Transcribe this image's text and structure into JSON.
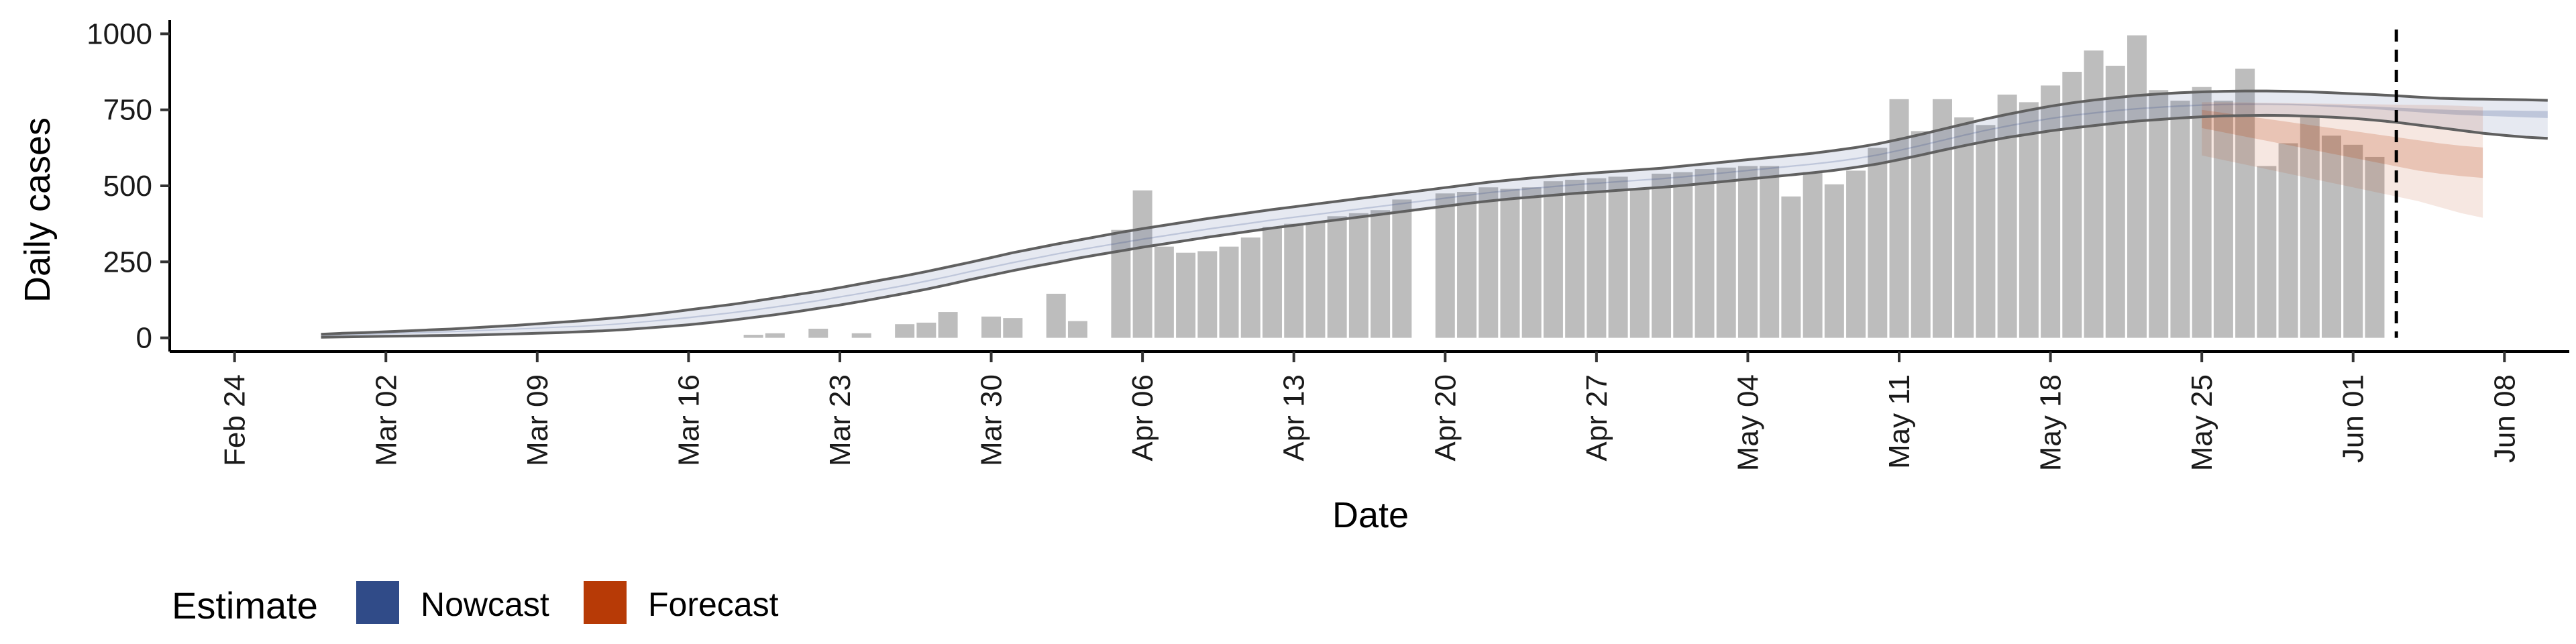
{
  "chart_data": {
    "type": "bar",
    "xlabel": "Date",
    "ylabel": "Daily cases",
    "xlim": [
      "2020-02-21",
      "2020-06-11"
    ],
    "ylim": [
      -45,
      1045
    ],
    "x_ticks": [
      "Feb 24",
      "Mar 02",
      "Mar 09",
      "Mar 16",
      "Mar 23",
      "Mar 30",
      "Apr 06",
      "Apr 13",
      "Apr 20",
      "Apr 27",
      "May 04",
      "May 11",
      "May 18",
      "May 25",
      "Jun 01",
      "Jun 08"
    ],
    "x_tick_dates": [
      "2020-02-24",
      "2020-03-02",
      "2020-03-09",
      "2020-03-16",
      "2020-03-23",
      "2020-03-30",
      "2020-04-06",
      "2020-04-13",
      "2020-04-20",
      "2020-04-27",
      "2020-05-04",
      "2020-05-11",
      "2020-05-18",
      "2020-05-25",
      "2020-06-01",
      "2020-06-08"
    ],
    "y_ticks": [
      0,
      250,
      500,
      750,
      1000
    ],
    "y_tick_labels": [
      "0",
      "250",
      "500",
      "750",
      "1000"
    ],
    "grid": false,
    "bar_start": "2020-02-28",
    "bars": [
      0,
      0,
      0,
      0,
      0,
      0,
      0,
      0,
      0,
      0,
      0,
      0,
      0,
      0,
      0,
      0,
      0,
      0,
      0,
      0,
      10,
      15,
      0,
      30,
      0,
      15,
      0,
      45,
      50,
      85,
      0,
      70,
      65,
      0,
      145,
      55,
      0,
      355,
      485,
      300,
      280,
      285,
      300,
      330,
      365,
      375,
      380,
      400,
      410,
      420,
      455,
      0,
      475,
      480,
      495,
      490,
      495,
      515,
      520,
      525,
      530,
      490,
      540,
      545,
      555,
      560,
      565,
      565,
      465,
      545,
      505,
      550,
      625,
      785,
      680,
      785,
      725,
      700,
      800,
      775,
      830,
      875,
      945,
      895,
      995,
      815,
      780,
      825,
      780,
      885,
      565,
      640,
      725,
      665,
      635,
      595
    ],
    "last_bar_date": "2020-06-02",
    "nowcast_date": "2020-05-24",
    "forecast_start": "2020-05-25",
    "forecast_end": "2020-06-07",
    "vline_date": "2020-06-03",
    "nowcast_median": [
      8,
      10,
      12,
      14,
      16,
      18,
      20,
      23,
      26,
      29,
      32,
      35,
      38,
      42,
      47,
      53,
      60,
      67,
      75,
      83,
      92,
      102,
      112,
      123,
      135,
      147,
      160,
      173,
      187,
      202,
      218,
      233,
      248,
      262,
      276,
      289,
      301,
      313,
      325,
      336,
      347,
      358,
      368,
      378,
      388,
      397,
      406,
      415,
      424,
      433,
      442,
      451,
      460,
      469,
      478,
      485,
      492,
      498,
      504,
      509,
      514,
      519,
      524,
      530,
      537,
      544,
      551,
      558,
      565,
      572,
      580,
      590,
      602,
      617,
      633,
      650,
      667,
      683,
      697,
      710,
      722,
      732,
      740,
      748,
      754,
      759,
      763,
      766,
      768,
      769,
      769,
      768,
      766,
      763,
      760,
      757,
      752,
      748,
      744,
      742,
      740,
      739,
      737,
      736
    ],
    "nowcast_lower90": [
      2,
      3,
      4,
      5,
      6,
      7,
      8,
      9,
      11,
      13,
      15,
      17,
      20,
      23,
      27,
      32,
      37,
      43,
      50,
      58,
      67,
      76,
      86,
      97,
      108,
      120,
      133,
      146,
      160,
      175,
      191,
      206,
      221,
      235,
      248,
      262,
      274,
      286,
      298,
      309,
      320,
      331,
      341,
      351,
      361,
      370,
      379,
      388,
      397,
      406,
      415,
      424,
      433,
      442,
      450,
      457,
      463,
      469,
      475,
      480,
      485,
      490,
      495,
      501,
      508,
      515,
      522,
      529,
      536,
      543,
      551,
      561,
      572,
      586,
      601,
      617,
      632,
      646,
      659,
      670,
      681,
      690,
      698,
      706,
      713,
      718,
      723,
      727,
      730,
      731,
      732,
      731,
      729,
      726,
      722,
      716,
      709,
      700,
      691,
      682,
      673,
      666,
      660,
      656
    ],
    "nowcast_upper90": [
      12,
      15,
      17,
      20,
      23,
      26,
      29,
      33,
      37,
      41,
      46,
      51,
      56,
      62,
      68,
      75,
      83,
      92,
      101,
      110,
      120,
      131,
      142,
      153,
      165,
      178,
      191,
      204,
      218,
      233,
      248,
      264,
      280,
      294,
      308,
      321,
      334,
      347,
      359,
      370,
      381,
      392,
      402,
      412,
      422,
      431,
      440,
      449,
      458,
      467,
      476,
      485,
      494,
      503,
      512,
      519,
      526,
      532,
      538,
      543,
      548,
      553,
      558,
      565,
      572,
      579,
      586,
      593,
      600,
      607,
      616,
      626,
      638,
      653,
      669,
      686,
      703,
      720,
      735,
      749,
      762,
      773,
      782,
      790,
      797,
      802,
      806,
      809,
      811,
      812,
      812,
      811,
      809,
      806,
      803,
      800,
      796,
      792,
      788,
      786,
      785,
      784,
      783,
      781
    ],
    "nowcast_lower50": [
      6,
      8,
      10,
      12,
      14,
      16,
      18,
      21,
      24,
      27,
      30,
      33,
      36,
      40,
      45,
      51,
      57,
      64,
      72,
      80,
      89,
      99,
      109,
      120,
      132,
      144,
      157,
      170,
      184,
      199,
      215,
      230,
      245,
      259,
      273,
      286,
      298,
      310,
      322,
      333,
      344,
      355,
      365,
      375,
      385,
      394,
      403,
      412,
      421,
      430,
      439,
      448,
      457,
      466,
      475,
      482,
      489,
      495,
      501,
      506,
      511,
      516,
      521,
      527,
      534,
      541,
      548,
      555,
      562,
      569,
      577,
      587,
      599,
      614,
      630,
      647,
      664,
      680,
      694,
      707,
      719,
      729,
      737,
      745,
      751,
      756,
      760,
      763,
      765,
      766,
      766,
      765,
      763,
      760,
      756,
      752,
      747,
      742,
      737,
      733,
      730,
      728,
      725,
      723
    ],
    "nowcast_upper50": [
      10,
      12,
      14,
      16,
      18,
      20,
      22,
      25,
      28,
      31,
      34,
      37,
      40,
      44,
      49,
      55,
      62,
      69,
      77,
      85,
      94,
      104,
      114,
      125,
      137,
      149,
      162,
      175,
      189,
      204,
      220,
      235,
      250,
      264,
      278,
      291,
      303,
      315,
      327,
      338,
      349,
      360,
      370,
      380,
      390,
      399,
      408,
      417,
      426,
      435,
      444,
      453,
      462,
      471,
      480,
      487,
      494,
      500,
      506,
      511,
      516,
      521,
      526,
      532,
      539,
      546,
      553,
      560,
      567,
      574,
      582,
      592,
      604,
      619,
      635,
      652,
      669,
      685,
      699,
      712,
      724,
      734,
      742,
      750,
      756,
      761,
      765,
      768,
      770,
      771,
      771,
      770,
      768,
      766,
      763,
      761,
      757,
      754,
      751,
      749,
      748,
      748,
      747,
      746
    ],
    "forecast_median": [
      720,
      708,
      696,
      684,
      672,
      660,
      648,
      636,
      624,
      612,
      600,
      590,
      582,
      576
    ],
    "forecast_lower90": [
      600,
      585,
      570,
      555,
      540,
      525,
      510,
      495,
      480,
      465,
      450,
      430,
      410,
      395
    ],
    "forecast_upper90": [
      775,
      775,
      774,
      773,
      772,
      771,
      770,
      769,
      768,
      767,
      766,
      765,
      763,
      760
    ],
    "forecast_lower50": [
      690,
      676,
      662,
      648,
      634,
      620,
      606,
      592,
      578,
      564,
      550,
      540,
      532,
      526
    ],
    "forecast_upper50": [
      750,
      740,
      730,
      720,
      710,
      700,
      690,
      680,
      670,
      660,
      650,
      640,
      632,
      626
    ],
    "colors": {
      "bars": "#bdbdbd",
      "nowcast": "#304b88",
      "forecast": "#b73a06",
      "interval_line": "#606060",
      "axis": "#000000"
    },
    "legend": {
      "title": "Estimate",
      "placement": "bottom-left",
      "items": [
        {
          "label": "Nowcast",
          "color": "#304b88"
        },
        {
          "label": "Forecast",
          "color": "#b73a06"
        }
      ]
    }
  }
}
